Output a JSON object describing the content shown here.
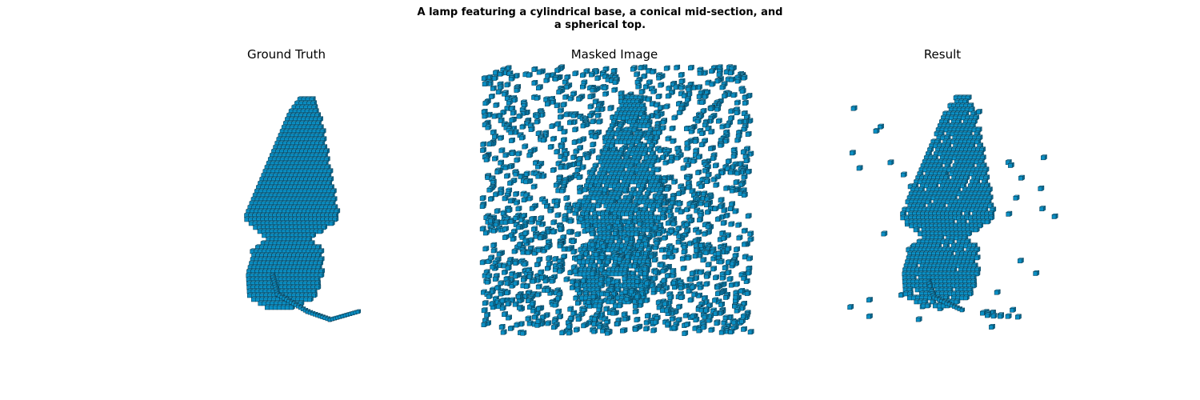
{
  "figure": {
    "title_line1": "A lamp featuring a cylindrical base, a conical mid-section, and",
    "title_line2": "a spherical top.",
    "panels": [
      {
        "title": "Ground Truth"
      },
      {
        "title": "Masked Image"
      },
      {
        "title": "Result"
      }
    ],
    "colors": {
      "voxel_front": "#0a8fc4",
      "voxel_side": "#066d96",
      "voxel_top": "#38b4e0",
      "voxel_edge": "#0b3b52"
    }
  }
}
